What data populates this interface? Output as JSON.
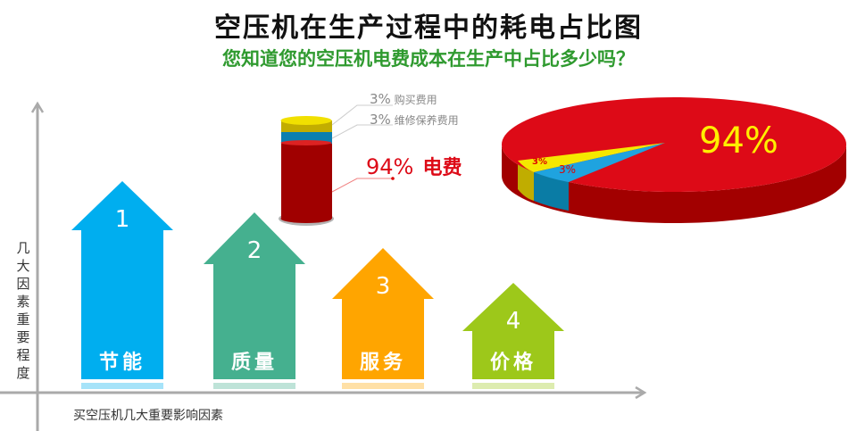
{
  "title": "空压机在生产过程中的耗电占比图",
  "subtitle": "您知道您的空压机电费成本在生产中占比多少吗？",
  "ylabel": "几大因素重要程度",
  "xlabel": "买空压机几大重要影响因素",
  "factors": [
    {
      "rank": "1",
      "label": "节能",
      "color": "#00aeef"
    },
    {
      "rank": "2",
      "label": "质量",
      "color": "#45b08f"
    },
    {
      "rank": "3",
      "label": "服务",
      "color": "#ffa500"
    },
    {
      "rank": "4",
      "label": "价格",
      "color": "#9dc81a"
    }
  ],
  "cylinder_legend": [
    {
      "value": "3%",
      "label": "购买费用"
    },
    {
      "value": "3%",
      "label": "维修保养费用"
    },
    {
      "value": "94%",
      "label": "电费"
    }
  ],
  "chart_data": {
    "type": "pie",
    "categories": [
      "电费",
      "购买费用",
      "维修保养费用"
    ],
    "values": [
      94,
      3,
      3
    ],
    "data_labels": [
      "94%",
      "3%",
      "3%"
    ],
    "colors": [
      "#dd0a17",
      "#f5e400",
      "#1fa3df"
    ],
    "style": "3d"
  }
}
